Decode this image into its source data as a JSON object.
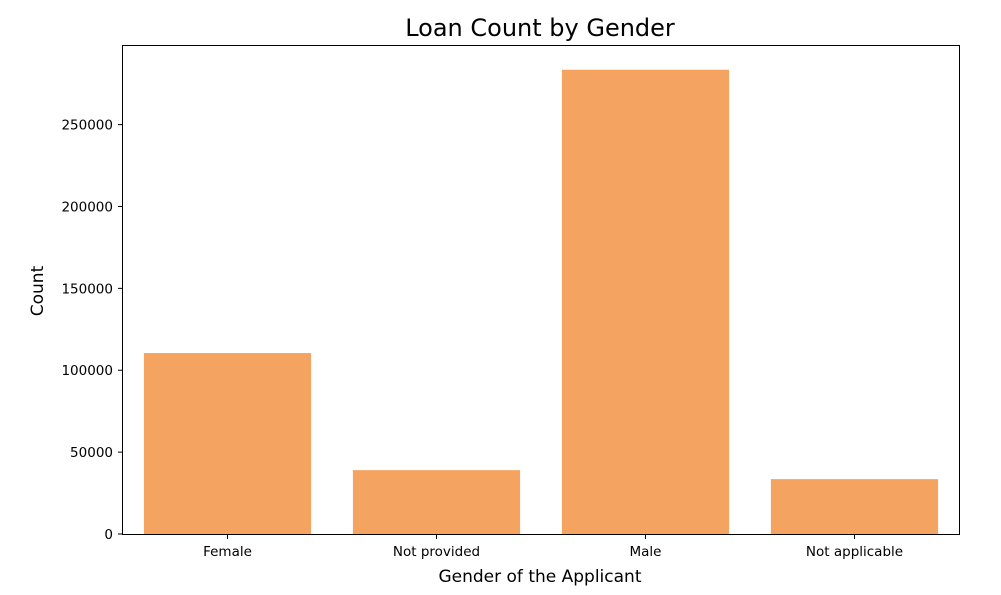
{
  "chart_data": {
    "type": "bar",
    "title": "Loan Count by Gender",
    "xlabel": "Gender of the Applicant",
    "ylabel": "Count",
    "categories": [
      "Female",
      "Not provided",
      "Male",
      "Not applicable"
    ],
    "values": [
      110500,
      39000,
      283500,
      33500
    ],
    "ylim": [
      0,
      298000
    ],
    "yticks": [
      0,
      50000,
      100000,
      150000,
      200000,
      250000
    ],
    "grid": false,
    "bar_color": "#f4a460"
  }
}
